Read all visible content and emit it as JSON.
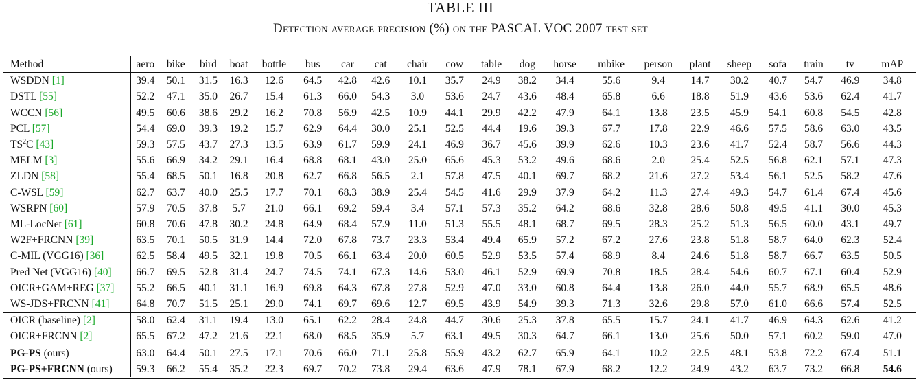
{
  "caption": {
    "label": "TABLE III",
    "title": "Detection average precision (%) on the PASCAL VOC 2007 test set"
  },
  "columns": [
    "Method",
    "aero",
    "bike",
    "bird",
    "boat",
    "bottle",
    "bus",
    "car",
    "cat",
    "chair",
    "cow",
    "table",
    "dog",
    "horse",
    "mbike",
    "person",
    "plant",
    "sheep",
    "sofa",
    "train",
    "tv",
    "mAP"
  ],
  "groups": [
    {
      "rows": [
        {
          "name": "WSDDN ",
          "ref": "[1]",
          "values": [
            "39.4",
            "50.1",
            "31.5",
            "16.3",
            "12.6",
            "64.5",
            "42.8",
            "42.6",
            "10.1",
            "35.7",
            "24.9",
            "38.2",
            "34.4",
            "55.6",
            "9.4",
            "14.7",
            "30.2",
            "40.7",
            "54.7",
            "46.9",
            "34.8"
          ]
        },
        {
          "name": "DSTL ",
          "ref": "[55]",
          "values": [
            "52.2",
            "47.1",
            "35.0",
            "26.7",
            "15.4",
            "61.3",
            "66.0",
            "54.3",
            "3.0",
            "53.6",
            "24.7",
            "43.6",
            "48.4",
            "65.8",
            "6.6",
            "18.8",
            "51.9",
            "43.6",
            "53.6",
            "62.4",
            "41.7"
          ]
        },
        {
          "name": "WCCN ",
          "ref": "[56]",
          "values": [
            "49.5",
            "60.6",
            "38.6",
            "29.2",
            "16.2",
            "70.8",
            "56.9",
            "42.5",
            "10.9",
            "44.1",
            "29.9",
            "42.2",
            "47.9",
            "64.1",
            "13.8",
            "23.5",
            "45.9",
            "54.1",
            "60.8",
            "54.5",
            "42.8"
          ]
        },
        {
          "name": "PCL ",
          "ref": "[57]",
          "values": [
            "54.4",
            "69.0",
            "39.3",
            "19.2",
            "15.7",
            "62.9",
            "64.4",
            "30.0",
            "25.1",
            "52.5",
            "44.4",
            "19.6",
            "39.3",
            "67.7",
            "17.8",
            "22.9",
            "46.6",
            "57.5",
            "58.6",
            "63.0",
            "43.5"
          ]
        },
        {
          "name": "TS",
          "sup": "2",
          "name2": "C ",
          "ref": "[43]",
          "values": [
            "59.3",
            "57.5",
            "43.7",
            "27.3",
            "13.5",
            "63.9",
            "61.7",
            "59.9",
            "24.1",
            "46.9",
            "36.7",
            "45.6",
            "39.9",
            "62.6",
            "10.3",
            "23.6",
            "41.7",
            "52.4",
            "58.7",
            "56.6",
            "44.3"
          ]
        },
        {
          "name": "MELM ",
          "ref": "[3]",
          "values": [
            "55.6",
            "66.9",
            "34.2",
            "29.1",
            "16.4",
            "68.8",
            "68.1",
            "43.0",
            "25.0",
            "65.6",
            "45.3",
            "53.2",
            "49.6",
            "68.6",
            "2.0",
            "25.4",
            "52.5",
            "56.8",
            "62.1",
            "57.1",
            "47.3"
          ]
        },
        {
          "name": "ZLDN ",
          "ref": "[58]",
          "values": [
            "55.4",
            "68.5",
            "50.1",
            "16.8",
            "20.8",
            "62.7",
            "66.8",
            "56.5",
            "2.1",
            "57.8",
            "47.5",
            "40.1",
            "69.7",
            "68.2",
            "21.6",
            "27.2",
            "53.4",
            "56.1",
            "52.5",
            "58.2",
            "47.6"
          ]
        },
        {
          "name": "C-WSL ",
          "ref": "[59]",
          "values": [
            "62.7",
            "63.7",
            "40.0",
            "25.5",
            "17.7",
            "70.1",
            "68.3",
            "38.9",
            "25.4",
            "54.5",
            "41.6",
            "29.9",
            "37.9",
            "64.2",
            "11.3",
            "27.4",
            "49.3",
            "54.7",
            "61.4",
            "67.4",
            "45.6"
          ]
        },
        {
          "name": "WSRPN ",
          "ref": "[60]",
          "values": [
            "57.9",
            "70.5",
            "37.8",
            "5.7",
            "21.0",
            "66.1",
            "69.2",
            "59.4",
            "3.4",
            "57.1",
            "57.3",
            "35.2",
            "64.2",
            "68.6",
            "32.8",
            "28.6",
            "50.8",
            "49.5",
            "41.1",
            "30.0",
            "45.3"
          ]
        },
        {
          "name": "ML-LocNet ",
          "ref": "[61]",
          "values": [
            "60.8",
            "70.6",
            "47.8",
            "30.2",
            "24.8",
            "64.9",
            "68.4",
            "57.9",
            "11.0",
            "51.3",
            "55.5",
            "48.1",
            "68.7",
            "69.5",
            "28.3",
            "25.2",
            "51.3",
            "56.5",
            "60.0",
            "43.1",
            "49.7"
          ]
        },
        {
          "name": "W2F+FRCNN ",
          "ref": "[39]",
          "values": [
            "63.5",
            "70.1",
            "50.5",
            "31.9",
            "14.4",
            "72.0",
            "67.8",
            "73.7",
            "23.3",
            "53.4",
            "49.4",
            "65.9",
            "57.2",
            "67.2",
            "27.6",
            "23.8",
            "51.8",
            "58.7",
            "64.0",
            "62.3",
            "52.4"
          ]
        },
        {
          "name": "C-MIL (VGG16) ",
          "ref": "[36]",
          "values": [
            "62.5",
            "58.4",
            "49.5",
            "32.1",
            "19.8",
            "70.5",
            "66.1",
            "63.4",
            "20.0",
            "60.5",
            "52.9",
            "53.5",
            "57.4",
            "68.9",
            "8.4",
            "24.6",
            "51.8",
            "58.7",
            "66.7",
            "63.5",
            "50.5"
          ]
        },
        {
          "name": "Pred Net (VGG16) ",
          "ref": "[40]",
          "values": [
            "66.7",
            "69.5",
            "52.8",
            "31.4",
            "24.7",
            "74.5",
            "74.1",
            "67.3",
            "14.6",
            "53.0",
            "46.1",
            "52.9",
            "69.9",
            "70.8",
            "18.5",
            "28.4",
            "54.6",
            "60.7",
            "67.1",
            "60.4",
            "52.9"
          ]
        },
        {
          "name": "OICR+GAM+REG ",
          "ref": "[37]",
          "values": [
            "55.2",
            "66.5",
            "40.1",
            "31.1",
            "16.9",
            "69.8",
            "64.3",
            "67.8",
            "27.8",
            "52.9",
            "47.0",
            "33.0",
            "60.8",
            "64.4",
            "13.8",
            "26.0",
            "44.0",
            "55.7",
            "68.9",
            "65.5",
            "48.6"
          ]
        },
        {
          "name": "WS-JDS+FRCNN ",
          "ref": "[41]",
          "values": [
            "64.8",
            "70.7",
            "51.5",
            "25.1",
            "29.0",
            "74.1",
            "69.7",
            "69.6",
            "12.7",
            "69.5",
            "43.9",
            "54.9",
            "39.3",
            "71.3",
            "32.6",
            "29.8",
            "57.0",
            "61.0",
            "66.6",
            "57.4",
            "52.5"
          ]
        }
      ]
    },
    {
      "rows": [
        {
          "name": "OICR (baseline) ",
          "ref": "[2]",
          "values": [
            "58.0",
            "62.4",
            "31.1",
            "19.4",
            "13.0",
            "65.1",
            "62.2",
            "28.4",
            "24.8",
            "44.7",
            "30.6",
            "25.3",
            "37.8",
            "65.5",
            "15.7",
            "24.1",
            "41.7",
            "46.9",
            "64.3",
            "62.6",
            "41.2"
          ]
        },
        {
          "name": "OICR+FRCNN ",
          "ref": "[2]",
          "values": [
            "65.5",
            "67.2",
            "47.2",
            "21.6",
            "22.1",
            "68.0",
            "68.5",
            "35.9",
            "5.7",
            "63.1",
            "49.5",
            "30.3",
            "64.7",
            "66.1",
            "13.0",
            "25.6",
            "50.0",
            "57.1",
            "60.2",
            "59.0",
            "47.0"
          ]
        }
      ]
    },
    {
      "rows": [
        {
          "name": "PG-PS",
          "suffix": " (ours)",
          "values": [
            "63.0",
            "64.4",
            "50.1",
            "27.5",
            "17.1",
            "70.6",
            "66.0",
            "71.1",
            "25.8",
            "55.9",
            "43.2",
            "62.7",
            "65.9",
            "64.1",
            "10.2",
            "22.5",
            "48.1",
            "53.8",
            "72.2",
            "67.4",
            "51.1"
          ]
        },
        {
          "name": "PG-PS+FRCNN",
          "suffix": " (ours)",
          "values": [
            "59.3",
            "66.2",
            "55.4",
            "35.2",
            "22.3",
            "69.7",
            "70.2",
            "73.8",
            "29.4",
            "63.6",
            "47.9",
            "78.1",
            "67.9",
            "68.2",
            "12.2",
            "24.9",
            "43.2",
            "63.7",
            "73.2",
            "66.8",
            "54.6"
          ],
          "bold_last": true
        }
      ]
    }
  ]
}
